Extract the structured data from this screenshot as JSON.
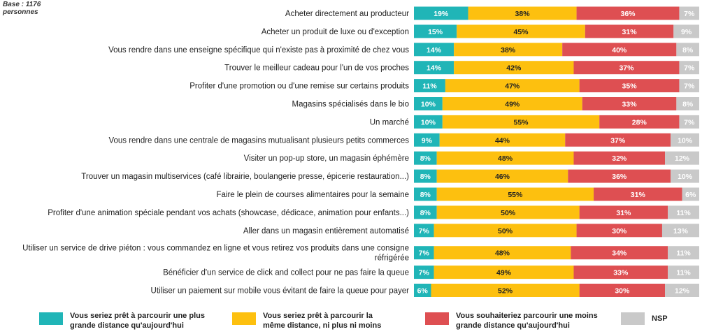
{
  "base_note": "Base : 1176\npersonnes",
  "colors": {
    "farther": "#20b5b7",
    "same": "#fdc00f",
    "shorter": "#de4f52",
    "nsp": "#c9c9c9"
  },
  "chart_data": {
    "type": "bar",
    "stacked": true,
    "orientation": "horizontal",
    "unit": "%",
    "categories": [
      "Acheter directement au producteur",
      "Acheter un produit de luxe ou d'exception",
      "Vous rendre dans une enseigne spécifique qui n'existe pas à proximité de chez vous",
      "Trouver le meilleur cadeau pour l'un de vos proches",
      "Profiter d'une promotion ou d'une remise sur certains produits",
      "Magasins spécialisés dans le bio",
      "Un marché",
      "Vous rendre dans une centrale de magasins mutualisant plusieurs petits commerces",
      "Visiter un pop-up store, un magasin éphémère",
      "Trouver un magasin multiservices (café librairie, boulangerie presse, épicerie restauration...)",
      "Faire le plein de courses alimentaires pour la semaine",
      "Profiter d'une animation spéciale pendant vos achats (showcase, dédicace, animation pour enfants...)",
      "Aller dans un magasin entièrement automatisé",
      "Utiliser un service de drive piéton : vous commandez en ligne et vous retirez vos produits dans une consigne\nréfrigérée",
      "Bénéficier d'un service de click and collect pour ne pas faire la queue",
      "Utiliser un paiement sur mobile vous évitant de faire la queue pour payer"
    ],
    "series": [
      {
        "name": "Vous seriez prêt à parcourir une plus grande distance qu'aujourd'hui",
        "color_key": "farther",
        "values": [
          19,
          15,
          14,
          14,
          11,
          10,
          10,
          9,
          8,
          8,
          8,
          8,
          7,
          7,
          7,
          6
        ]
      },
      {
        "name": "Vous seriez prêt à parcourir la même distance, ni plus ni moins",
        "color_key": "same",
        "values": [
          38,
          45,
          38,
          42,
          47,
          49,
          55,
          44,
          48,
          46,
          55,
          50,
          50,
          48,
          49,
          52
        ]
      },
      {
        "name": "Vous souhaiteriez parcourir une moins grande distance qu'aujourd'hui",
        "color_key": "shorter",
        "values": [
          36,
          31,
          40,
          37,
          35,
          33,
          28,
          37,
          32,
          36,
          31,
          31,
          30,
          34,
          33,
          30
        ]
      },
      {
        "name": "NSP",
        "color_key": "nsp",
        "values": [
          7,
          9,
          8,
          7,
          7,
          8,
          7,
          10,
          12,
          10,
          6,
          11,
          13,
          11,
          11,
          12
        ]
      }
    ],
    "legend_position": "bottom",
    "grid": false
  },
  "legend": [
    {
      "label": "Vous seriez prêt à parcourir une plus\ngrande distance qu'aujourd'hui",
      "color_key": "farther"
    },
    {
      "label": "Vous seriez prêt à parcourir la\nmême distance, ni plus ni moins",
      "color_key": "same"
    },
    {
      "label": "Vous souhaiteriez parcourir une moins\ngrande distance qu'aujourd'hui",
      "color_key": "shorter"
    },
    {
      "label": "NSP",
      "color_key": "nsp"
    }
  ]
}
